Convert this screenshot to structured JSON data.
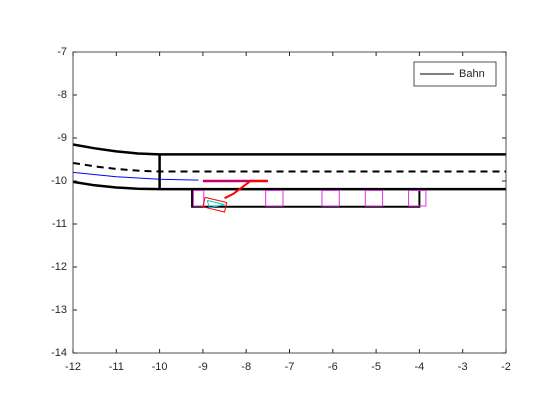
{
  "chart_data": {
    "type": "line",
    "xlim": [
      -12,
      -2
    ],
    "ylim": [
      -14,
      -7
    ],
    "xticks": [
      -12,
      -11,
      -10,
      -9,
      -8,
      -7,
      -6,
      -5,
      -4,
      -3,
      -2
    ],
    "yticks": [
      -14,
      -13,
      -12,
      -11,
      -10,
      -9,
      -8,
      -7
    ],
    "legend_location": "northeast",
    "series": [
      {
        "name": "Bahn",
        "color": "#000000",
        "width": 2.5,
        "x": [
          -12,
          -11.5,
          -11,
          -10.5,
          -10,
          -2
        ],
        "values": [
          -9.15,
          -9.24,
          -9.31,
          -9.36,
          -9.38,
          -9.38
        ]
      },
      {
        "color": "#000000",
        "width": 2,
        "dashed": true,
        "x": [
          -12,
          -11.5,
          -11,
          -10.5,
          -10,
          -2
        ],
        "values": [
          -9.58,
          -9.66,
          -9.72,
          -9.76,
          -9.78,
          -9.78
        ]
      },
      {
        "color": "#000000",
        "width": 2.5,
        "x": [
          -12,
          -11.5,
          -11,
          -10.5,
          -10,
          -2
        ],
        "values": [
          -10.02,
          -10.1,
          -10.15,
          -10.18,
          -10.19,
          -10.19
        ]
      },
      {
        "color": "#0000ff",
        "width": 1,
        "x": [
          -12,
          -11,
          -10,
          -9.1
        ],
        "values": [
          -9.8,
          -9.9,
          -9.96,
          -9.98
        ]
      },
      {
        "color": "#000000",
        "width": 2.5,
        "x": [
          -10,
          -10
        ],
        "values": [
          -9.38,
          -10.19
        ]
      },
      {
        "color": "#000000",
        "width": 2,
        "x": [
          -9.25,
          -4,
          -4,
          -9.25,
          -9.25
        ],
        "values": [
          -10.19,
          -10.19,
          -10.6,
          -10.6,
          -10.19
        ]
      },
      {
        "color": "#c8006e",
        "width": 2.5,
        "x": [
          -9,
          -7.5
        ],
        "values": [
          -10,
          -10
        ]
      },
      {
        "color": "#ff0000",
        "width": 2,
        "x": [
          -7.5,
          -7.9,
          -8.1,
          -8.3,
          -8.5
        ],
        "values": [
          -10,
          -10,
          -10.15,
          -10.3,
          -10.4
        ]
      },
      {
        "color": "#dd33dd",
        "width": 1,
        "x": [
          -9.22,
          -8.98,
          -8.98,
          -9.22,
          -9.22
        ],
        "values": [
          -10.22,
          -10.22,
          -10.58,
          -10.58,
          -10.22
        ]
      },
      {
        "color": "#dd33dd",
        "width": 1,
        "x": [
          -7.55,
          -7.15,
          -7.15,
          -7.55,
          -7.55
        ],
        "values": [
          -10.22,
          -10.22,
          -10.58,
          -10.58,
          -10.22
        ]
      },
      {
        "color": "#dd33dd",
        "width": 1,
        "x": [
          -6.25,
          -5.85,
          -5.85,
          -6.25,
          -6.25
        ],
        "values": [
          -10.22,
          -10.22,
          -10.58,
          -10.58,
          -10.22
        ]
      },
      {
        "color": "#dd33dd",
        "width": 1,
        "x": [
          -5.25,
          -4.85,
          -4.85,
          -5.25,
          -5.25
        ],
        "values": [
          -10.22,
          -10.22,
          -10.58,
          -10.58,
          -10.22
        ]
      },
      {
        "color": "#dd33dd",
        "width": 1,
        "x": [
          -4.25,
          -3.85,
          -3.85,
          -4.25,
          -4.25
        ],
        "values": [
          -10.22,
          -10.22,
          -10.58,
          -10.58,
          -10.22
        ]
      },
      {
        "color": "#ff0000",
        "width": 1,
        "x": [
          -8.95,
          -8.45,
          -8.5,
          -9.0,
          -8.95
        ],
        "values": [
          -10.38,
          -10.5,
          -10.72,
          -10.6,
          -10.38
        ]
      },
      {
        "color": "#00cccc",
        "width": 1,
        "x": [
          -8.9,
          -8.5,
          -8.85,
          -8.9
        ],
        "values": [
          -10.45,
          -10.55,
          -10.62,
          -10.45
        ]
      }
    ]
  }
}
